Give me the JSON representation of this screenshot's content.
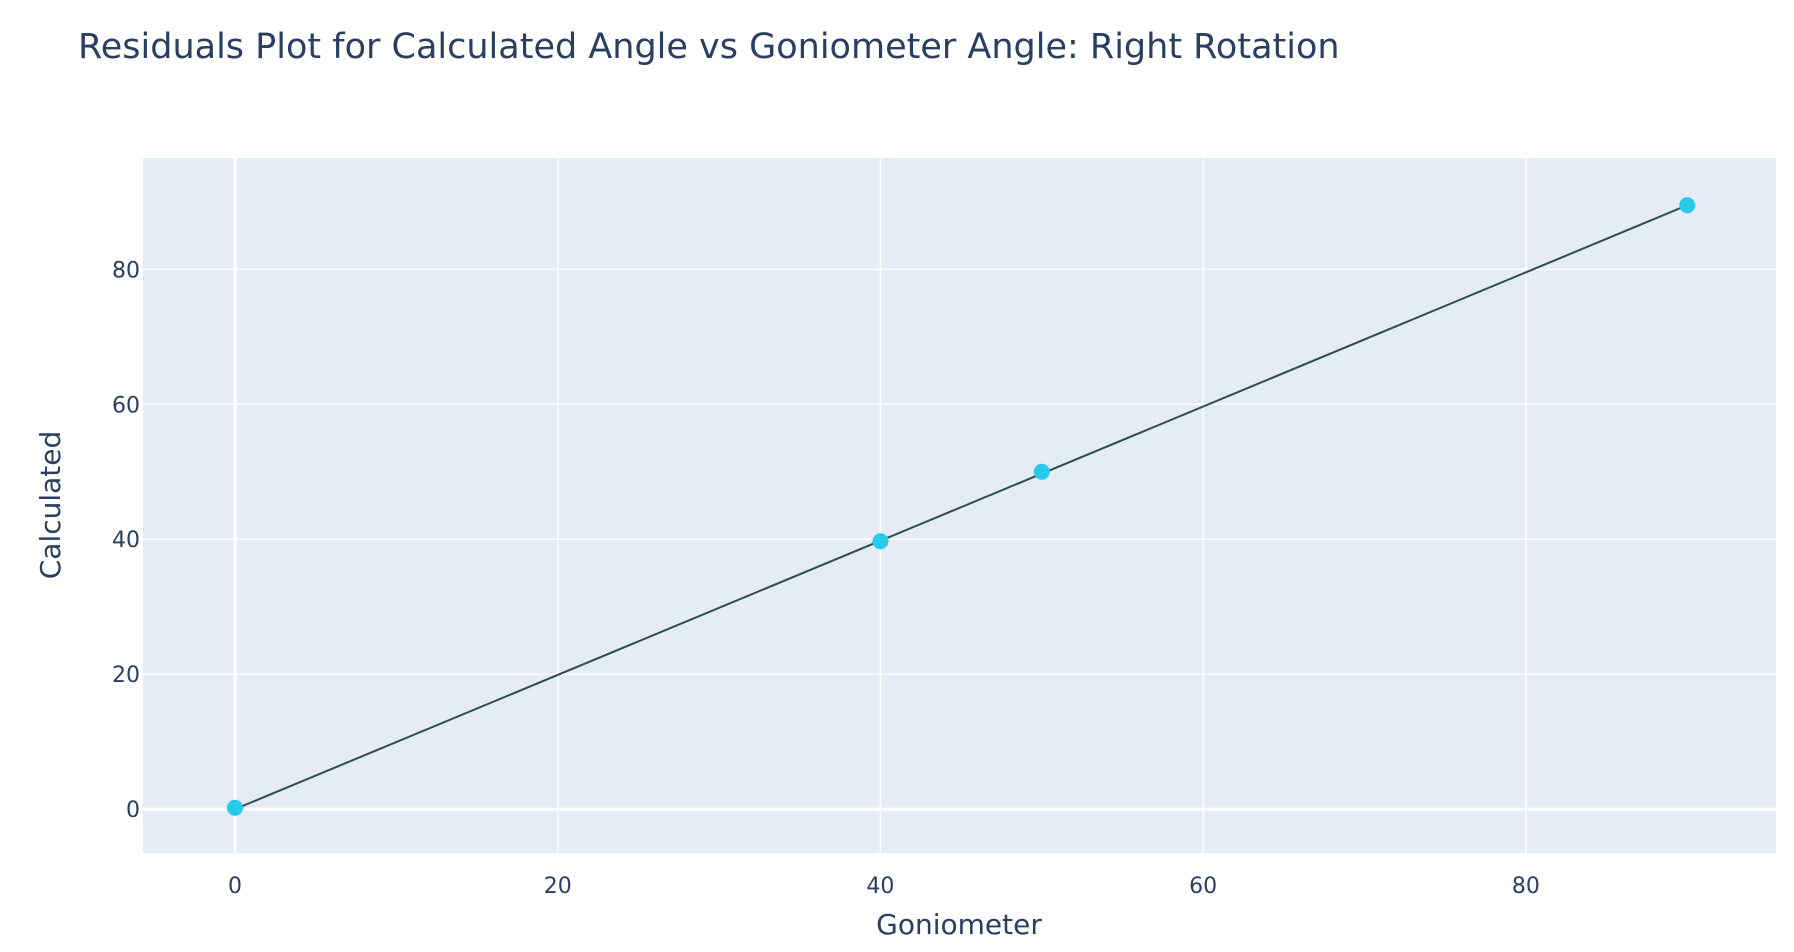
{
  "chart_data": {
    "type": "scatter",
    "title": "Residuals Plot for Calculated Angle vs Goniometer Angle: Right Rotation",
    "xlabel": "Goniometer",
    "ylabel": "Calculated",
    "xlim": [
      -5.7,
      95.5
    ],
    "ylim": [
      -6.5,
      96.5
    ],
    "x_ticks": [
      0,
      20,
      40,
      60,
      80
    ],
    "y_ticks": [
      0,
      20,
      40,
      60,
      80
    ],
    "grid": true,
    "series": [
      {
        "mode": "markers",
        "x": [
          0,
          40,
          50,
          90
        ],
        "y": [
          0.2,
          39.7,
          50.0,
          89.5
        ],
        "color": "#25cbe8"
      },
      {
        "mode": "line",
        "x": [
          0,
          90
        ],
        "y": [
          0,
          89.5
        ],
        "color": "#2f4f4f"
      }
    ],
    "plot_bgcolor": "#e5ecf6",
    "grid_color": "#ffffff"
  }
}
